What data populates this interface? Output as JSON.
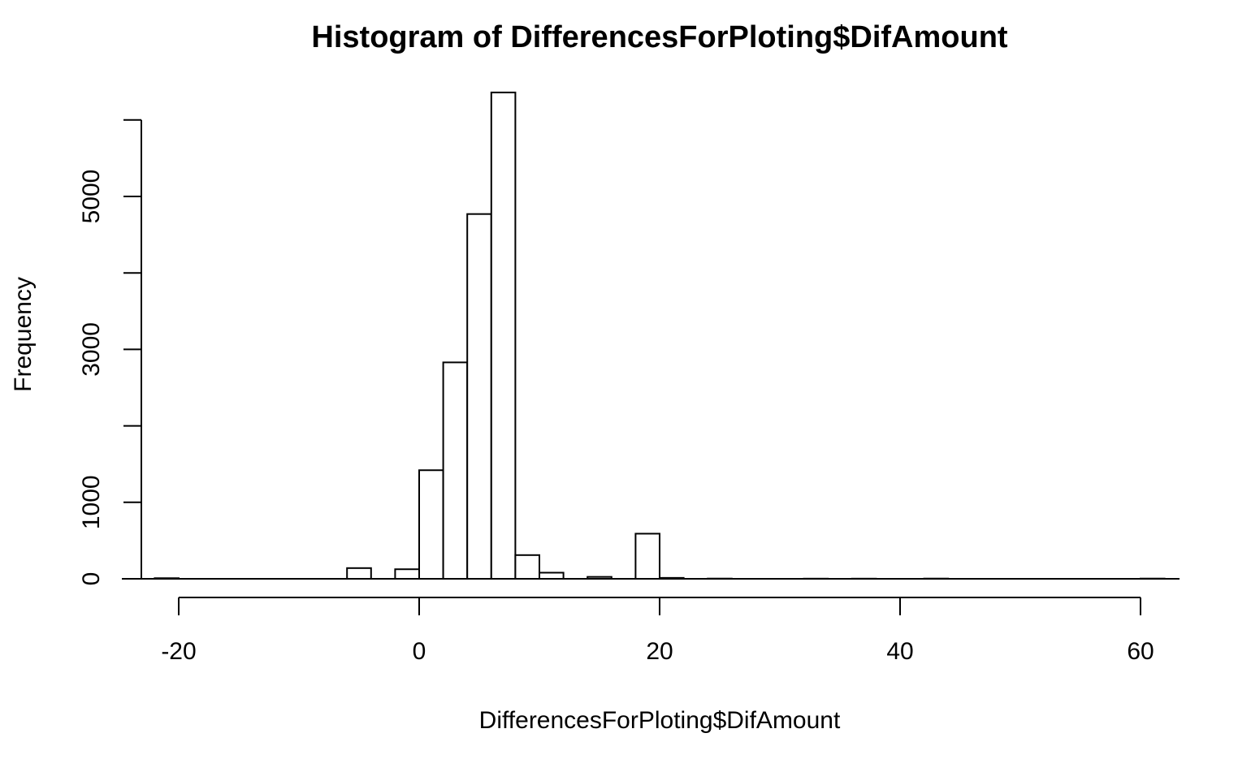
{
  "chart_data": {
    "type": "bar",
    "subtype": "histogram",
    "title": "Histogram of DifferencesForPloting$DifAmount",
    "xlabel": "DifferencesForPloting$DifAmount",
    "ylabel": "Frequency",
    "bin_width": 2,
    "xlim": [
      -22,
      62
    ],
    "ylim": [
      0,
      6400
    ],
    "x_ticks": [
      -20,
      0,
      20,
      40,
      60
    ],
    "y_ticks": [
      0,
      1000,
      2000,
      3000,
      4000,
      5000,
      6000
    ],
    "y_tick_labels": [
      "0",
      "1000",
      "",
      "3000",
      "",
      "5000",
      ""
    ],
    "bins": [
      {
        "x0": -22,
        "x1": -20,
        "count": 8
      },
      {
        "x0": -20,
        "x1": -18,
        "count": 0
      },
      {
        "x0": -18,
        "x1": -16,
        "count": 0
      },
      {
        "x0": -16,
        "x1": -14,
        "count": 0
      },
      {
        "x0": -14,
        "x1": -12,
        "count": 0
      },
      {
        "x0": -12,
        "x1": -10,
        "count": 0
      },
      {
        "x0": -10,
        "x1": -8,
        "count": 0
      },
      {
        "x0": -8,
        "x1": -6,
        "count": 0
      },
      {
        "x0": -6,
        "x1": -4,
        "count": 140
      },
      {
        "x0": -4,
        "x1": -2,
        "count": 0
      },
      {
        "x0": -2,
        "x1": 0,
        "count": 125
      },
      {
        "x0": 0,
        "x1": 2,
        "count": 1420
      },
      {
        "x0": 2,
        "x1": 4,
        "count": 2830
      },
      {
        "x0": 4,
        "x1": 6,
        "count": 4770
      },
      {
        "x0": 6,
        "x1": 8,
        "count": 6360
      },
      {
        "x0": 8,
        "x1": 10,
        "count": 310
      },
      {
        "x0": 10,
        "x1": 12,
        "count": 80
      },
      {
        "x0": 12,
        "x1": 14,
        "count": 0
      },
      {
        "x0": 14,
        "x1": 16,
        "count": 25
      },
      {
        "x0": 16,
        "x1": 18,
        "count": 0
      },
      {
        "x0": 18,
        "x1": 20,
        "count": 590
      },
      {
        "x0": 20,
        "x1": 22,
        "count": 12
      },
      {
        "x0": 22,
        "x1": 24,
        "count": 0
      },
      {
        "x0": 24,
        "x1": 26,
        "count": 3
      },
      {
        "x0": 26,
        "x1": 28,
        "count": 0
      },
      {
        "x0": 28,
        "x1": 30,
        "count": 0
      },
      {
        "x0": 30,
        "x1": 32,
        "count": 0
      },
      {
        "x0": 32,
        "x1": 34,
        "count": 2
      },
      {
        "x0": 34,
        "x1": 36,
        "count": 0
      },
      {
        "x0": 36,
        "x1": 38,
        "count": 2
      },
      {
        "x0": 38,
        "x1": 40,
        "count": 0
      },
      {
        "x0": 40,
        "x1": 42,
        "count": 0
      },
      {
        "x0": 42,
        "x1": 44,
        "count": 3
      },
      {
        "x0": 44,
        "x1": 46,
        "count": 0
      },
      {
        "x0": 46,
        "x1": 48,
        "count": 0
      },
      {
        "x0": 48,
        "x1": 50,
        "count": 0
      },
      {
        "x0": 50,
        "x1": 52,
        "count": 0
      },
      {
        "x0": 52,
        "x1": 54,
        "count": 0
      },
      {
        "x0": 54,
        "x1": 56,
        "count": 0
      },
      {
        "x0": 56,
        "x1": 58,
        "count": 0
      },
      {
        "x0": 58,
        "x1": 60,
        "count": 0
      },
      {
        "x0": 60,
        "x1": 62,
        "count": 3
      }
    ],
    "grid": false,
    "legend": "none",
    "bar_fill": "#ffffff",
    "bar_stroke": "#000000"
  }
}
